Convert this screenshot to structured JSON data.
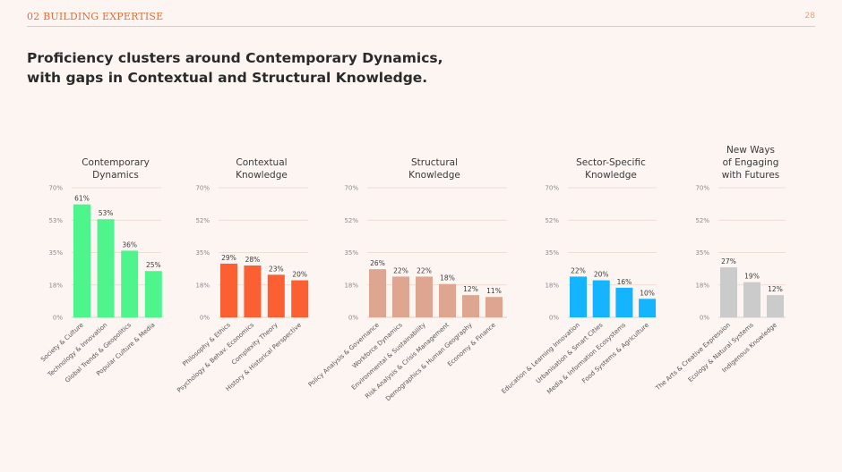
{
  "header": {
    "section": "02 BUILDING EXPERTISE",
    "page_number": "28"
  },
  "headline": {
    "line1": "Proficiency clusters around Contemporary Dynamics,",
    "line2": "with gaps in Contextual and Structural Knowledge."
  },
  "chart_data": [
    {
      "type": "bar",
      "title": [
        "Contemporary",
        "Dynamics"
      ],
      "color": "#4ef58c",
      "ticks": [
        "70%",
        "53%",
        "35%",
        "18%",
        "0%"
      ],
      "ylim": [
        0,
        70
      ],
      "categories": [
        "Society & Culture",
        "Technology & Innovation",
        "Global Trends & Geopolitics",
        "Popular Culture & Media"
      ],
      "values": [
        61,
        53,
        36,
        25
      ],
      "labels": [
        "61%",
        "53%",
        "36%",
        "25%"
      ]
    },
    {
      "type": "bar",
      "title": [
        "Contextual",
        "Knowledge"
      ],
      "color": "#fc5f32",
      "ticks": [
        "70%",
        "52%",
        "35%",
        "18%",
        "0%"
      ],
      "ylim": [
        0,
        70
      ],
      "categories": [
        "Philosophy & Ethics",
        "Psychology & Behav. Economics",
        "Complexity Theory",
        "History & Historical Perspective"
      ],
      "values": [
        29,
        28,
        23,
        20
      ],
      "labels": [
        "29%",
        "28%",
        "23%",
        "20%"
      ]
    },
    {
      "type": "bar",
      "title": [
        "Structural",
        "Knowledge"
      ],
      "color": "#dea690",
      "ticks": [
        "70%",
        "52%",
        "35%",
        "18%",
        "0%"
      ],
      "ylim": [
        0,
        70
      ],
      "categories": [
        "Policy Analysis & Governance",
        "Workforce Dynamics",
        "Environmental & Sustainability",
        "Risk Analysis & Crisis Management",
        "Demographics & Human Geography",
        "Economy & Finance"
      ],
      "values": [
        26,
        22,
        22,
        18,
        12,
        11
      ],
      "labels": [
        "26%",
        "22%",
        "22%",
        "18%",
        "12%",
        "11%"
      ]
    },
    {
      "type": "bar",
      "title": [
        "Sector-Specific",
        "Knowledge"
      ],
      "color": "#14b4ff",
      "ticks": [
        "70%",
        "52%",
        "35%",
        "18%",
        "0%"
      ],
      "ylim": [
        0,
        70
      ],
      "categories": [
        "Education & Learning Innovation",
        "Urbanisation & Smart Cities",
        "Media & Information Ecosystems",
        "Food Systems & Agriculture"
      ],
      "values": [
        22,
        20,
        16,
        10
      ],
      "labels": [
        "22%",
        "20%",
        "16%",
        "10%"
      ]
    },
    {
      "type": "bar",
      "title": [
        "New Ways",
        "of Engaging",
        "with Futures"
      ],
      "color": "#cbcbcb",
      "ticks": [
        "70%",
        "52%",
        "35%",
        "18%",
        "0%"
      ],
      "ylim": [
        0,
        70
      ],
      "categories": [
        "The Arts & Creative Expression",
        "Ecology & Natural Systems",
        "Indigenous Knowledge"
      ],
      "values": [
        27,
        19,
        12
      ],
      "labels": [
        "27%",
        "19%",
        "12%"
      ]
    }
  ]
}
